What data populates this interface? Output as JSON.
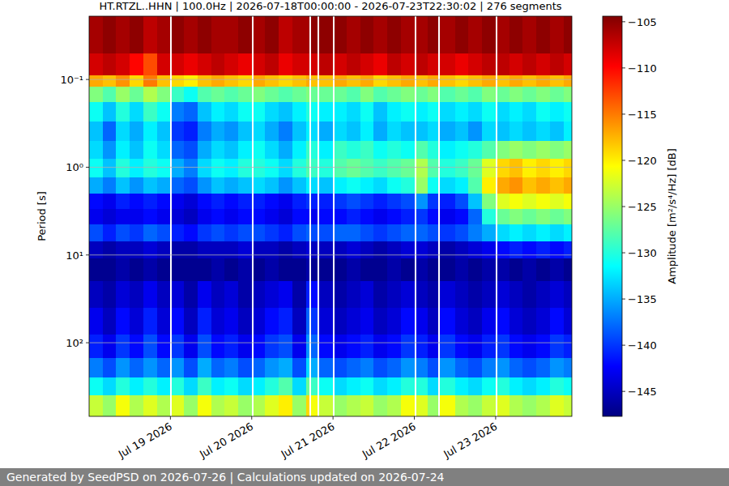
{
  "chart_data": {
    "type": "heatmap",
    "title": "HT.RTZL..HHN | 100.0Hz | 2026-07-18T00:00:00 - 2026-07-23T22:30:02 | 276 segments",
    "y_label": "Period [s]",
    "log": "y",
    "grid": true,
    "xlim": [
      "2026-07-18T00:00:00",
      "2026-07-23T22:30:02"
    ],
    "xticks": [
      {
        "value": "2026-07-19T00:00",
        "label": "Jul 19 2026"
      },
      {
        "value": "2026-07-20T00:00",
        "label": "Jul 20 2026"
      },
      {
        "value": "2026-07-21T00:00",
        "label": "Jul 21 2026"
      },
      {
        "value": "2026-07-22T00:00",
        "label": "Jul 22 2026"
      },
      {
        "value": "2026-07-23T00:00",
        "label": "Jul 23 2026"
      }
    ],
    "ylim": [
      0.019,
      690
    ],
    "yticks": [
      {
        "value": 0.1,
        "label": "10⁻¹"
      },
      {
        "value": 1,
        "label": "10⁰"
      },
      {
        "value": 10,
        "label": "10¹"
      },
      {
        "value": 100,
        "label": "10²"
      }
    ],
    "x": [
      "2026-07-18T00:00",
      "2026-07-18T04:00",
      "2026-07-18T08:00",
      "2026-07-18T12:00",
      "2026-07-18T16:00",
      "2026-07-18T20:00",
      "2026-07-19T00:00",
      "2026-07-19T00:30",
      "2026-07-19T04:00",
      "2026-07-19T08:00",
      "2026-07-19T12:00",
      "2026-07-19T16:00",
      "2026-07-19T20:00",
      "2026-07-20T00:00",
      "2026-07-20T00:30",
      "2026-07-20T04:00",
      "2026-07-20T08:00",
      "2026-07-20T12:00",
      "2026-07-20T16:00",
      "2026-07-20T17:00",
      "2026-07-20T17:30",
      "2026-07-20T19:30",
      "2026-07-20T20:00",
      "2026-07-21T00:00",
      "2026-07-21T00:30",
      "2026-07-21T04:00",
      "2026-07-21T08:00",
      "2026-07-21T12:00",
      "2026-07-21T16:00",
      "2026-07-21T20:00",
      "2026-07-22T00:00",
      "2026-07-22T00:30",
      "2026-07-22T04:00",
      "2026-07-22T07:00",
      "2026-07-22T07:30",
      "2026-07-22T12:00",
      "2026-07-22T16:00",
      "2026-07-22T20:00",
      "2026-07-23T00:00",
      "2026-07-23T00:30",
      "2026-07-23T04:00",
      "2026-07-23T08:00",
      "2026-07-23T12:00",
      "2026-07-23T16:00",
      "2026-07-23T20:00",
      "2026-07-23T22:30"
    ],
    "y": [
      0.019,
      0.05,
      0.09,
      0.12,
      0.18,
      0.3,
      0.5,
      0.8,
      1.3,
      2,
      3,
      4.5,
      7,
      11,
      20,
      40,
      80,
      150,
      250,
      400,
      690
    ],
    "values": [
      [
        -106,
        -105,
        -106,
        -105,
        -107,
        -106,
        null,
        -105,
        -106,
        -105,
        -106,
        -106,
        -105,
        null,
        -106,
        -105,
        -107,
        -106,
        -106,
        null,
        -105,
        null,
        -105,
        null,
        -105,
        -106,
        -105,
        -106,
        -105,
        -106,
        null,
        -106,
        -105,
        null,
        -106,
        -105,
        -106,
        -105,
        null,
        -106,
        -105,
        -106,
        -105,
        -106,
        -105
      ],
      [
        -108,
        -107,
        -108,
        -110,
        -113,
        -108,
        null,
        -108,
        -109,
        -108,
        -107,
        -108,
        -109,
        null,
        -108,
        -107,
        -109,
        -108,
        -108,
        null,
        -108,
        null,
        -107,
        null,
        -108,
        -107,
        -108,
        -109,
        -107,
        -108,
        null,
        -107,
        -108,
        null,
        -108,
        -109,
        -108,
        -107,
        null,
        -107,
        -108,
        -107,
        -108,
        -107,
        -108
      ],
      [
        -117,
        -118,
        -116,
        -119,
        -115,
        -118,
        null,
        -119,
        -120,
        -118,
        -117,
        -118,
        -119,
        null,
        -117,
        -118,
        -119,
        -118,
        -117,
        null,
        -118,
        null,
        -118,
        null,
        -117,
        -118,
        -117,
        -119,
        -118,
        -117,
        null,
        -118,
        -117,
        null,
        -118,
        -119,
        -118,
        -117,
        null,
        -118,
        -117,
        -118,
        -117,
        -118,
        -117
      ],
      [
        -126,
        -128,
        -125,
        -127,
        -124,
        -126,
        null,
        -129,
        -131,
        -128,
        -127,
        -128,
        -127,
        null,
        -126,
        -127,
        -128,
        -127,
        -126,
        null,
        -127,
        null,
        -127,
        null,
        -127,
        -128,
        -126,
        -128,
        -127,
        -126,
        null,
        -127,
        -126,
        null,
        -128,
        -127,
        -128,
        -126,
        null,
        -127,
        -126,
        -127,
        -126,
        -127,
        -126
      ],
      [
        -131,
        -134,
        -130,
        -133,
        -129,
        -131,
        null,
        -137,
        -138,
        -134,
        -132,
        -133,
        -131,
        null,
        -131,
        -133,
        -134,
        -132,
        -130,
        null,
        -131,
        null,
        -132,
        null,
        -132,
        -133,
        -131,
        -134,
        -132,
        -131,
        null,
        -132,
        -131,
        null,
        -133,
        -132,
        -133,
        -131,
        null,
        -133,
        -132,
        -133,
        -131,
        -132,
        -131
      ],
      [
        -134,
        -138,
        -133,
        -135,
        -132,
        -134,
        null,
        -140,
        -141,
        -137,
        -135,
        -136,
        -134,
        null,
        -133,
        -135,
        -137,
        -134,
        -132,
        null,
        -133,
        null,
        -135,
        null,
        -133,
        -134,
        -132,
        -135,
        -133,
        -134,
        null,
        -134,
        -133,
        null,
        -135,
        -134,
        -136,
        -133,
        null,
        -134,
        -133,
        -134,
        -133,
        -134,
        -132
      ],
      [
        -133,
        -136,
        -132,
        -134,
        -131,
        -133,
        null,
        -138,
        -139,
        -135,
        -133,
        -134,
        -132,
        null,
        -131,
        -133,
        -135,
        -132,
        -129,
        null,
        -130,
        null,
        -132,
        null,
        -129,
        -130,
        -129,
        -131,
        -130,
        -131,
        null,
        -128,
        -130,
        null,
        -132,
        -131,
        -130,
        -128,
        null,
        -126,
        -125,
        -126,
        -125,
        -126,
        -125
      ],
      [
        -131,
        -134,
        -130,
        -132,
        -130,
        -131,
        null,
        -135,
        -137,
        -133,
        -131,
        -132,
        -130,
        null,
        -130,
        -131,
        -133,
        -130,
        -128,
        null,
        -129,
        null,
        -130,
        null,
        -128,
        -127,
        -128,
        -129,
        -128,
        -127,
        null,
        -124,
        -128,
        null,
        -130,
        -129,
        -127,
        -122,
        null,
        -119,
        -118,
        -120,
        -119,
        -120,
        -119
      ],
      [
        -135,
        -137,
        -134,
        -136,
        -134,
        -135,
        null,
        -138,
        -139,
        -136,
        -134,
        -135,
        -134,
        null,
        -133,
        -134,
        -136,
        -134,
        -132,
        null,
        -133,
        null,
        -134,
        null,
        -132,
        -131,
        -132,
        -133,
        -131,
        -130,
        null,
        -125,
        -131,
        null,
        -133,
        -132,
        -128,
        -120,
        null,
        -117,
        -116,
        -118,
        -117,
        -118,
        -117
      ],
      [
        -142,
        -143,
        -141,
        -142,
        -141,
        -142,
        null,
        -143,
        -144,
        -142,
        -141,
        -142,
        -141,
        null,
        -141,
        -142,
        -143,
        -141,
        -140,
        null,
        -141,
        null,
        -141,
        null,
        -140,
        -139,
        -140,
        -141,
        -140,
        -139,
        null,
        -136,
        -140,
        null,
        -141,
        -139,
        -134,
        -126,
        null,
        -122,
        -121,
        -122,
        -121,
        -122,
        -121
      ],
      [
        -143,
        -144,
        -143,
        -143,
        -142,
        -143,
        null,
        -144,
        -145,
        -143,
        -142,
        -143,
        -142,
        null,
        -142,
        -143,
        -144,
        -142,
        -142,
        null,
        -143,
        null,
        -142,
        null,
        -142,
        -141,
        -142,
        -143,
        -142,
        -141,
        null,
        -140,
        -142,
        null,
        -143,
        -142,
        -138,
        -130,
        null,
        -127,
        -126,
        -127,
        -126,
        -127,
        -126
      ],
      [
        -139,
        -141,
        -139,
        -140,
        -138,
        -139,
        null,
        -141,
        -142,
        -140,
        -139,
        -140,
        -139,
        null,
        -139,
        -140,
        -141,
        -139,
        -138,
        null,
        -139,
        null,
        -139,
        null,
        -138,
        -138,
        -139,
        -140,
        -139,
        -138,
        null,
        -138,
        -139,
        null,
        -140,
        -139,
        -137,
        -135,
        null,
        -133,
        -132,
        -133,
        -132,
        -133,
        -132
      ],
      [
        -145,
        -146,
        -145,
        -145,
        -144,
        -145,
        null,
        -146,
        -146,
        -145,
        -145,
        -145,
        -144,
        null,
        -145,
        -145,
        -146,
        -145,
        -144,
        null,
        -145,
        null,
        -145,
        null,
        -145,
        -144,
        -145,
        -146,
        -145,
        -144,
        null,
        -144,
        -145,
        null,
        -146,
        -145,
        -144,
        -143,
        null,
        -142,
        -141,
        -142,
        -141,
        -142,
        -141
      ],
      [
        -147,
        -147,
        -146,
        -147,
        -146,
        -147,
        null,
        -147,
        -147,
        -147,
        -146,
        -147,
        -146,
        null,
        -147,
        -146,
        -147,
        -147,
        -146,
        null,
        -147,
        null,
        -147,
        null,
        -147,
        -146,
        -147,
        -147,
        -146,
        -147,
        null,
        -146,
        -147,
        null,
        -147,
        -146,
        -147,
        -146,
        null,
        -146,
        -147,
        -146,
        -147,
        -146,
        -147
      ],
      [
        -145,
        -146,
        -144,
        -145,
        -143,
        -145,
        null,
        -144,
        -146,
        -143,
        -145,
        -144,
        -146,
        null,
        -145,
        -144,
        -143,
        -146,
        -141,
        null,
        -142,
        null,
        -145,
        null,
        -146,
        -145,
        -144,
        -146,
        -145,
        -144,
        null,
        -145,
        -146,
        null,
        -144,
        -145,
        -146,
        -145,
        null,
        -144,
        -145,
        -146,
        -145,
        -144,
        -145
      ],
      [
        -143,
        -145,
        -142,
        -144,
        -141,
        -144,
        null,
        -142,
        -145,
        -141,
        -144,
        -143,
        -145,
        null,
        -144,
        -142,
        -141,
        -145,
        -138,
        null,
        -140,
        null,
        -144,
        null,
        -145,
        -144,
        -143,
        -145,
        -144,
        -142,
        null,
        -143,
        -145,
        null,
        -142,
        -144,
        -145,
        -143,
        null,
        -142,
        -144,
        -145,
        -144,
        -142,
        -144
      ],
      [
        -141,
        -143,
        -140,
        -142,
        -139,
        -142,
        null,
        -140,
        -143,
        -139,
        -142,
        -141,
        -143,
        null,
        -142,
        -140,
        -139,
        -143,
        -136,
        null,
        -138,
        null,
        -142,
        null,
        -143,
        -142,
        -141,
        -143,
        -142,
        -140,
        null,
        -141,
        -143,
        null,
        -140,
        -142,
        -143,
        -141,
        null,
        -140,
        -142,
        -143,
        -142,
        -140,
        -141
      ],
      [
        -137,
        -139,
        -136,
        -138,
        -136,
        -138,
        null,
        -136,
        -139,
        -135,
        -138,
        -137,
        -139,
        null,
        -138,
        -136,
        -135,
        -139,
        -133,
        null,
        -135,
        null,
        -138,
        null,
        -139,
        -138,
        -137,
        -139,
        -138,
        -136,
        null,
        -137,
        -139,
        null,
        -136,
        -138,
        -139,
        -137,
        null,
        -136,
        -138,
        -139,
        -138,
        -136,
        -137
      ],
      [
        -131,
        -133,
        -130,
        -132,
        -130,
        -132,
        null,
        -130,
        -133,
        -129,
        -132,
        -131,
        -133,
        null,
        -132,
        -130,
        -128,
        -133,
        -127,
        null,
        -129,
        null,
        -131,
        null,
        -133,
        -132,
        -131,
        -133,
        -132,
        -130,
        null,
        -130,
        -133,
        null,
        -130,
        -132,
        -133,
        -131,
        null,
        -130,
        -132,
        -133,
        -132,
        -130,
        -131
      ],
      [
        -123,
        -125,
        -121,
        -124,
        -122,
        -124,
        null,
        -122,
        -125,
        -121,
        -124,
        -123,
        -125,
        null,
        -124,
        -122,
        -120,
        -125,
        -119,
        null,
        -121,
        null,
        -123,
        null,
        -125,
        -124,
        -123,
        -125,
        -124,
        -121,
        null,
        -122,
        -125,
        null,
        -121,
        -124,
        -125,
        -123,
        null,
        -122,
        -124,
        -125,
        -124,
        -122,
        -123
      ]
    ],
    "colorbar": {
      "label": "Amplitude [m²/s⁴/Hz] [dB]",
      "lim": [
        -147.7,
        -104.4
      ],
      "ticks": [
        {
          "value": -145,
          "label": "−145"
        },
        {
          "value": -140,
          "label": "−140"
        },
        {
          "value": -135,
          "label": "−135"
        },
        {
          "value": -130,
          "label": "−130"
        },
        {
          "value": -125,
          "label": "−125"
        },
        {
          "value": -120,
          "label": "−120"
        },
        {
          "value": -115,
          "label": "−115"
        },
        {
          "value": -110,
          "label": "−110"
        },
        {
          "value": -105,
          "label": "−105"
        }
      ]
    }
  },
  "footer": "Generated by SeedPSD on 2026-07-26 | Calculations updated on 2026-07-24"
}
